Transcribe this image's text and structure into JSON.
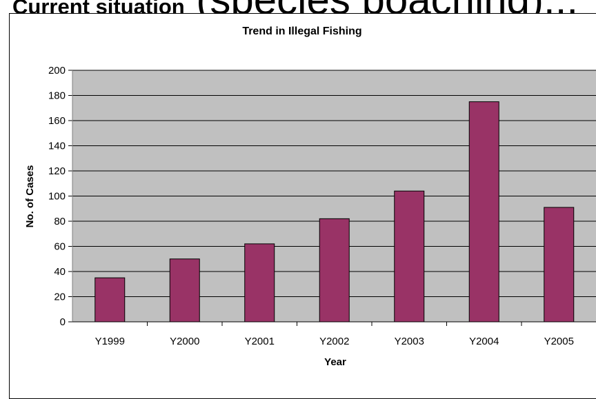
{
  "slide": {
    "heading_bold": "Current situation",
    "heading_large": " (species poaching)..."
  },
  "chart_data": {
    "type": "bar",
    "title": "Trend in Illegal Fishing",
    "xlabel": "Year",
    "ylabel": "No. of Cases",
    "categories": [
      "Y1999",
      "Y2000",
      "Y2001",
      "Y2002",
      "Y2003",
      "Y2004",
      "Y2005"
    ],
    "values": [
      35,
      50,
      62,
      82,
      104,
      175,
      91
    ],
    "ylim": [
      0,
      200
    ],
    "yticks": [
      0,
      20,
      40,
      60,
      80,
      100,
      120,
      140,
      160,
      180,
      200
    ],
    "grid": true,
    "legend": "none",
    "colors": {
      "bar": "#993366",
      "plot_background": "#c0c0c0",
      "gridline": "#000000"
    }
  }
}
